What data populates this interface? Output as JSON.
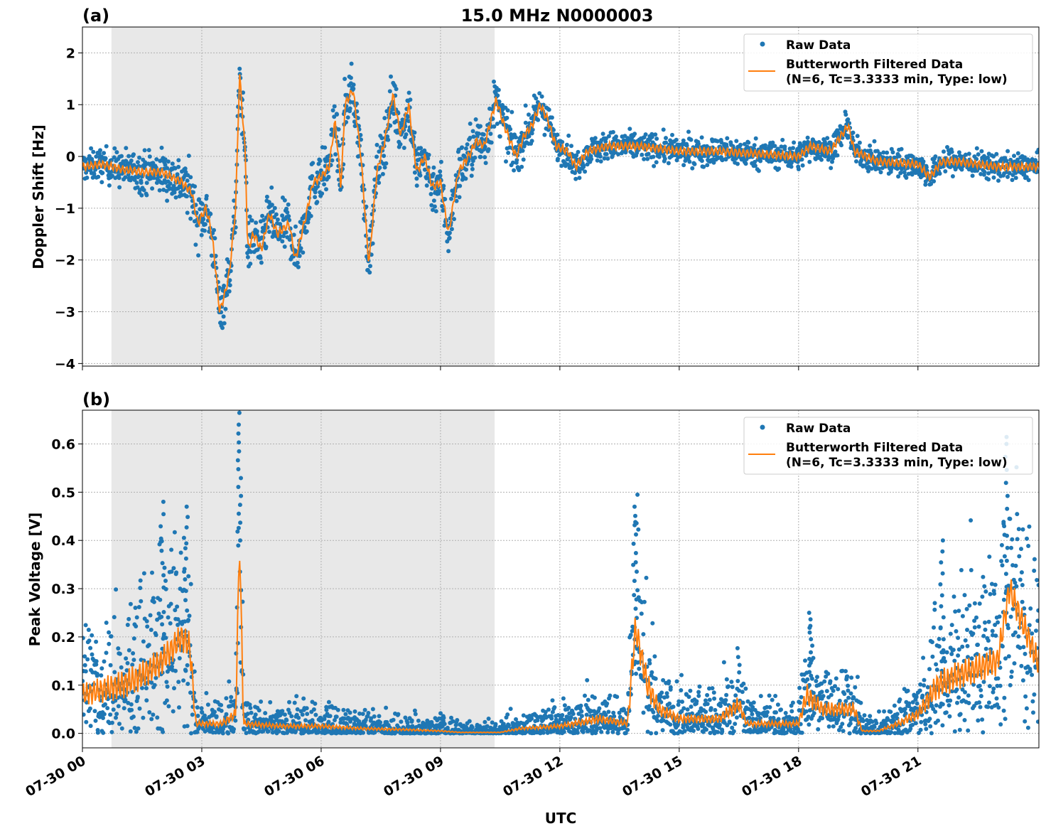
{
  "title": "15.0 MHz N0000003",
  "colors": {
    "raw": "#1f77b4",
    "filtered": "#ff7f0e",
    "shade": "#e8e8e8",
    "grid": "#b0b0b0"
  },
  "chart_data": [
    {
      "type": "scatter",
      "panel_label": "(a)",
      "title": "15.0 MHz N0000003",
      "ylabel": "Doppler Shift [Hz]",
      "xlabel": "",
      "xlim_hours": [
        0,
        24.04
      ],
      "ylim": [
        -4.05,
        2.5
      ],
      "yticks": [
        -4,
        -3,
        -2,
        -1,
        0,
        1,
        2
      ],
      "ytick_labels": [
        "−4",
        "−3",
        "−2",
        "−1",
        "0",
        "1",
        "2"
      ],
      "grid": true,
      "legend_position": "top-right",
      "legend": [
        "Raw Data",
        "Butterworth Filtered Data",
        "(N=6, Tc=3.3333 min, Type: low)"
      ],
      "shaded_hours": [
        0.73,
        10.36
      ],
      "filtered": [
        [
          0,
          -0.2
        ],
        [
          0.5,
          -0.15
        ],
        [
          1,
          -0.25
        ],
        [
          1.5,
          -0.3
        ],
        [
          2,
          -0.3
        ],
        [
          2.5,
          -0.5
        ],
        [
          2.75,
          -0.7
        ],
        [
          2.9,
          -1.3
        ],
        [
          3.1,
          -1.0
        ],
        [
          3.2,
          -1.3
        ],
        [
          3.3,
          -1.8
        ],
        [
          3.45,
          -3.0
        ],
        [
          3.6,
          -2.6
        ],
        [
          3.7,
          -2.2
        ],
        [
          3.85,
          -1.0
        ],
        [
          3.95,
          1.6
        ],
        [
          4.1,
          0.0
        ],
        [
          4.15,
          -1.8
        ],
        [
          4.3,
          -1.5
        ],
        [
          4.5,
          -1.8
        ],
        [
          4.7,
          -1.1
        ],
        [
          4.9,
          -1.5
        ],
        [
          5.2,
          -1.3
        ],
        [
          5.35,
          -2.0
        ],
        [
          5.6,
          -1.2
        ],
        [
          5.8,
          -0.5
        ],
        [
          6.0,
          -0.4
        ],
        [
          6.2,
          -0.2
        ],
        [
          6.35,
          0.7
        ],
        [
          6.5,
          -0.6
        ],
        [
          6.6,
          1.0
        ],
        [
          6.8,
          1.3
        ],
        [
          7.0,
          0.0
        ],
        [
          7.2,
          -2.1
        ],
        [
          7.4,
          -0.3
        ],
        [
          7.6,
          0.3
        ],
        [
          7.8,
          1.2
        ],
        [
          8.0,
          0.4
        ],
        [
          8.2,
          1.0
        ],
        [
          8.4,
          -0.3
        ],
        [
          8.6,
          0.0
        ],
        [
          8.8,
          -0.6
        ],
        [
          9.0,
          -0.5
        ],
        [
          9.2,
          -1.5
        ],
        [
          9.45,
          -0.3
        ],
        [
          9.7,
          0.0
        ],
        [
          9.9,
          0.3
        ],
        [
          10.1,
          0.2
        ],
        [
          10.4,
          1.1
        ],
        [
          10.6,
          0.6
        ],
        [
          10.9,
          0.0
        ],
        [
          11.1,
          0.4
        ],
        [
          11.3,
          0.6
        ],
        [
          11.5,
          1.0
        ],
        [
          11.7,
          0.7
        ],
        [
          11.9,
          0.2
        ],
        [
          12.2,
          0.1
        ],
        [
          12.4,
          -0.2
        ],
        [
          12.7,
          0.1
        ],
        [
          13.2,
          0.2
        ],
        [
          14,
          0.2
        ],
        [
          15,
          0.1
        ],
        [
          16,
          0.1
        ],
        [
          17,
          0.05
        ],
        [
          18,
          0.0
        ],
        [
          18.3,
          0.2
        ],
        [
          18.8,
          0.1
        ],
        [
          19.25,
          0.6
        ],
        [
          19.4,
          0.1
        ],
        [
          20,
          -0.1
        ],
        [
          21,
          -0.15
        ],
        [
          21.3,
          -0.4
        ],
        [
          21.6,
          -0.1
        ],
        [
          22,
          -0.1
        ],
        [
          23,
          -0.2
        ],
        [
          24,
          -0.2
        ]
      ],
      "raw_spread": [
        [
          0,
          0.25
        ],
        [
          0.73,
          0.3
        ],
        [
          2.7,
          0.45
        ],
        [
          10.4,
          0.45
        ],
        [
          12,
          0.25
        ],
        [
          24,
          0.22
        ]
      ]
    },
    {
      "type": "scatter",
      "panel_label": "(b)",
      "ylabel": "Peak Voltage [V]",
      "xlabel": "UTC",
      "xlim_hours": [
        0,
        24.04
      ],
      "ylim": [
        -0.03,
        0.67
      ],
      "yticks": [
        0.0,
        0.1,
        0.2,
        0.3,
        0.4,
        0.5,
        0.6
      ],
      "ytick_labels": [
        "0.0",
        "0.1",
        "0.2",
        "0.3",
        "0.4",
        "0.5",
        "0.6"
      ],
      "xticks_hours": [
        0,
        3,
        6,
        9,
        12,
        15,
        18,
        21
      ],
      "xtick_labels": [
        "07-30 00",
        "07-30 03",
        "07-30 06",
        "07-30 09",
        "07-30 12",
        "07-30 15",
        "07-30 18",
        "07-30 21"
      ],
      "grid": true,
      "legend_position": "top-right",
      "legend": [
        "Raw Data",
        "Butterworth Filtered Data",
        "(N=6, Tc=3.3333 min, Type: low)"
      ],
      "shaded_hours": [
        0.73,
        10.36
      ],
      "filtered": [
        [
          0,
          0.08
        ],
        [
          0.5,
          0.09
        ],
        [
          1.0,
          0.1
        ],
        [
          1.5,
          0.12
        ],
        [
          2,
          0.15
        ],
        [
          2.5,
          0.2
        ],
        [
          2.7,
          0.18
        ],
        [
          2.85,
          0.02
        ],
        [
          3.5,
          0.02
        ],
        [
          3.85,
          0.04
        ],
        [
          3.95,
          0.4
        ],
        [
          4.05,
          0.02
        ],
        [
          5,
          0.015
        ],
        [
          6,
          0.015
        ],
        [
          7,
          0.01
        ],
        [
          8,
          0.008
        ],
        [
          9,
          0.005
        ],
        [
          9.5,
          0.002
        ],
        [
          10.5,
          0.002
        ],
        [
          11,
          0.01
        ],
        [
          12,
          0.015
        ],
        [
          13,
          0.03
        ],
        [
          13.7,
          0.02
        ],
        [
          13.9,
          0.22
        ],
        [
          14.2,
          0.1
        ],
        [
          14.5,
          0.05
        ],
        [
          15,
          0.03
        ],
        [
          16,
          0.03
        ],
        [
          16.5,
          0.06
        ],
        [
          16.7,
          0.02
        ],
        [
          17,
          0.02
        ],
        [
          18,
          0.02
        ],
        [
          18.2,
          0.08
        ],
        [
          18.6,
          0.05
        ],
        [
          19,
          0.05
        ],
        [
          19.4,
          0.05
        ],
        [
          19.6,
          0.005
        ],
        [
          20,
          0.005
        ],
        [
          20.5,
          0.02
        ],
        [
          21,
          0.04
        ],
        [
          21.5,
          0.1
        ],
        [
          22,
          0.12
        ],
        [
          23,
          0.15
        ],
        [
          23.3,
          0.3
        ],
        [
          24,
          0.15
        ]
      ],
      "raw_peaks": [
        [
          3.95,
          0.64
        ],
        [
          13.9,
          0.47
        ],
        [
          23.2,
          0.6
        ],
        [
          2.0,
          0.48
        ],
        [
          2.6,
          0.47
        ],
        [
          21.6,
          0.4
        ],
        [
          18.3,
          0.25
        ]
      ]
    }
  ]
}
